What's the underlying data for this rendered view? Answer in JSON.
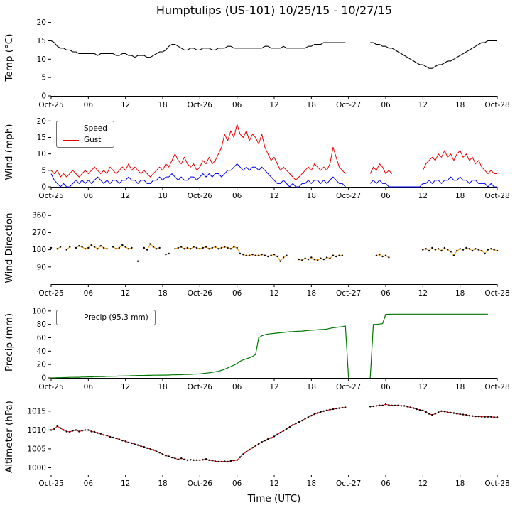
{
  "title": "Humptulips (US-101) 10/25/15 - 10/27/15",
  "xlabel": "Time (UTC)",
  "x_axis": {
    "xlim": [
      0,
      72
    ],
    "tick_hours": [
      0,
      6,
      12,
      18,
      24,
      30,
      36,
      42,
      48,
      54,
      60,
      66,
      72
    ],
    "tick_labels": [
      "Oct-25",
      "06",
      "12",
      "18",
      "Oct-26",
      "06",
      "12",
      "18",
      "Oct-27",
      "06",
      "12",
      "18",
      "Oct-28"
    ]
  },
  "chart_data": [
    {
      "id": "temp",
      "type": "line",
      "ylabel": "Temp (°C)",
      "ylim": [
        0,
        20.5
      ],
      "yticks": [
        0,
        5,
        10,
        15,
        20
      ],
      "series": [
        {
          "name": "Temp",
          "color": "#000000",
          "width": 1.1,
          "marker": false,
          "start": 0,
          "step": 0.5,
          "values": [
            15,
            14.5,
            13.5,
            13,
            13,
            12.5,
            12.5,
            12,
            12,
            11.5,
            11.5,
            11.5,
            11.5,
            11.5,
            11.5,
            11,
            11.5,
            11.5,
            11.5,
            11.5,
            11.5,
            11,
            11,
            11.5,
            11.5,
            11,
            11,
            10.5,
            11,
            11,
            11,
            10.5,
            10.5,
            11,
            11.5,
            12,
            12,
            12.5,
            13.5,
            14,
            14,
            13.5,
            13,
            12.5,
            12.5,
            13,
            13,
            12.5,
            12.5,
            13,
            13,
            13,
            12.5,
            12.5,
            13,
            13,
            13,
            13.5,
            13.5,
            13,
            13,
            13,
            13,
            13,
            13,
            13,
            13,
            13,
            13,
            13.5,
            13.5,
            13,
            13,
            13,
            13,
            13.5,
            13,
            13,
            13,
            13,
            13,
            13,
            13,
            13.5,
            13.5,
            14,
            14,
            14,
            14.5,
            14.5,
            14.5,
            14.5,
            14.5,
            14.5,
            14.5,
            14.5,
            null,
            null,
            null,
            null,
            null,
            null,
            null,
            14.5,
            14.5,
            14,
            14,
            13.5,
            13.5,
            13,
            13,
            12.5,
            12,
            11.5,
            11,
            10.5,
            10,
            9.5,
            9,
            8.5,
            8.5,
            8,
            7.5,
            7.5,
            8,
            8.5,
            8.5,
            9,
            9.5,
            9.5,
            10,
            10.5,
            11,
            11.5,
            12,
            12.5,
            13,
            13.5,
            14,
            14.5,
            14.5,
            15,
            15,
            15,
            15
          ]
        }
      ]
    },
    {
      "id": "wind",
      "type": "line",
      "ylabel": "Wind (mph)",
      "ylim": [
        0,
        20.5
      ],
      "yticks": [
        0,
        5,
        10,
        15,
        20
      ],
      "legend_position": "upper-left",
      "series": [
        {
          "name": "Speed",
          "color": "#0000ee",
          "width": 1,
          "marker": false,
          "start": 0,
          "step": 0.5,
          "values": [
            4,
            2,
            1,
            0,
            1,
            0,
            0,
            1,
            2,
            1,
            2,
            1,
            2,
            1,
            2,
            3,
            2,
            1,
            2,
            1,
            2,
            2,
            1,
            2,
            2,
            3,
            2,
            2,
            1,
            2,
            2,
            1,
            1,
            2,
            2,
            3,
            2,
            3,
            3,
            4,
            3,
            2,
            3,
            2,
            2,
            3,
            3,
            2,
            3,
            4,
            3,
            4,
            3,
            4,
            4,
            3,
            4,
            5,
            5,
            6,
            7,
            6,
            5,
            6,
            5,
            6,
            6,
            5,
            6,
            5,
            4,
            3,
            2,
            1,
            1,
            2,
            1,
            0,
            1,
            0,
            0,
            1,
            1,
            2,
            1,
            2,
            2,
            1,
            2,
            1,
            2,
            3,
            2,
            1,
            1,
            0,
            null,
            null,
            null,
            null,
            null,
            null,
            null,
            1,
            2,
            1,
            2,
            1,
            1,
            0,
            0,
            0,
            0,
            0,
            0,
            0,
            0,
            0,
            0,
            0,
            1,
            1,
            2,
            1,
            2,
            2,
            1,
            2,
            2,
            3,
            2,
            2,
            3,
            2,
            2,
            1,
            2,
            2,
            1,
            1,
            1,
            0,
            1,
            0,
            0
          ]
        },
        {
          "name": "Gust",
          "color": "#ee0000",
          "width": 1,
          "marker": false,
          "start": 0,
          "step": 0.5,
          "values": [
            5,
            4,
            5,
            3,
            4,
            3,
            4,
            5,
            4,
            3,
            4,
            5,
            4,
            5,
            6,
            5,
            4,
            5,
            4,
            6,
            5,
            4,
            5,
            6,
            5,
            7,
            5,
            6,
            5,
            4,
            5,
            4,
            3,
            4,
            5,
            6,
            5,
            7,
            6,
            8,
            10,
            8,
            7,
            9,
            7,
            6,
            7,
            5,
            6,
            8,
            7,
            9,
            7,
            8,
            10,
            12,
            16,
            14,
            17,
            15,
            19,
            16,
            15,
            17,
            14,
            16,
            15,
            13,
            16,
            12,
            10,
            8,
            9,
            7,
            5,
            6,
            5,
            4,
            3,
            2,
            3,
            4,
            5,
            6,
            5,
            7,
            6,
            5,
            6,
            5,
            7,
            12,
            9,
            6,
            5,
            4,
            null,
            null,
            null,
            null,
            null,
            null,
            null,
            4,
            6,
            5,
            7,
            6,
            4,
            5,
            4,
            null,
            null,
            null,
            null,
            null,
            null,
            null,
            null,
            null,
            5,
            7,
            8,
            9,
            8,
            10,
            9,
            11,
            9,
            10,
            8,
            10,
            11,
            9,
            10,
            8,
            9,
            7,
            8,
            6,
            5,
            4,
            5,
            4,
            4
          ]
        }
      ]
    },
    {
      "id": "wind-direction",
      "type": "line",
      "ylabel": "Wind Direction",
      "ylim": [
        0,
        372
      ],
      "yticks": [
        90,
        180,
        270,
        360
      ],
      "series": [
        {
          "name": "Wind Direction",
          "color": "#ff9900",
          "width": 1,
          "marker": true,
          "marker_color": "#000000",
          "start": 0,
          "step": 0.5,
          "values": [
            190,
            null,
            185,
            195,
            null,
            180,
            195,
            null,
            190,
            200,
            195,
            185,
            190,
            205,
            195,
            185,
            200,
            190,
            185,
            null,
            195,
            185,
            190,
            205,
            195,
            185,
            190,
            null,
            120,
            null,
            190,
            180,
            210,
            195,
            185,
            190,
            null,
            155,
            160,
            null,
            185,
            190,
            195,
            185,
            190,
            185,
            195,
            190,
            185,
            190,
            195,
            185,
            190,
            195,
            185,
            190,
            195,
            190,
            185,
            195,
            190,
            160,
            155,
            150,
            150,
            155,
            150,
            150,
            155,
            150,
            145,
            150,
            155,
            145,
            120,
            140,
            150,
            null,
            null,
            null,
            130,
            125,
            135,
            130,
            140,
            130,
            125,
            135,
            130,
            140,
            135,
            150,
            145,
            150,
            150,
            null,
            null,
            null,
            null,
            null,
            null,
            null,
            null,
            null,
            null,
            150,
            155,
            145,
            150,
            140,
            null,
            null,
            null,
            null,
            null,
            null,
            null,
            null,
            null,
            null,
            180,
            185,
            175,
            190,
            180,
            185,
            175,
            190,
            180,
            170,
            150,
            175,
            185,
            180,
            190,
            185,
            175,
            185,
            180,
            175,
            160,
            180,
            185,
            180,
            175
          ]
        }
      ]
    },
    {
      "id": "precip",
      "type": "line",
      "ylabel": "Precip (mm)",
      "ylim": [
        0,
        103
      ],
      "yticks": [
        0,
        20,
        40,
        60,
        80,
        100
      ],
      "legend_position": "upper-left",
      "series": [
        {
          "name": "Precip (95.3 mm)",
          "color": "#007700",
          "width": 1.2,
          "marker": false,
          "start": 0,
          "step": 0.5,
          "values": [
            0,
            0,
            0.3,
            0.3,
            0.5,
            0.5,
            0.8,
            0.8,
            1,
            1,
            1.3,
            1.3,
            1.5,
            1.5,
            1.8,
            1.8,
            2,
            2,
            2.3,
            2.3,
            2.5,
            2.5,
            2.8,
            2.8,
            3,
            3,
            3.3,
            3.3,
            3.6,
            3.6,
            3.6,
            3.8,
            3.8,
            4,
            4,
            4.1,
            4.1,
            4.3,
            4.3,
            4.6,
            4.6,
            4.8,
            4.8,
            5.1,
            5.1,
            5.3,
            5.6,
            5.8,
            6.1,
            6.6,
            7.1,
            7.6,
            8.4,
            9.1,
            9.9,
            11.4,
            13,
            15,
            17,
            19,
            21.5,
            25,
            27,
            28.5,
            30,
            32,
            35,
            60,
            63,
            64.5,
            65.5,
            66,
            66.5,
            67,
            67.5,
            68,
            68.5,
            69,
            69.2,
            69.5,
            69.8,
            70,
            70.5,
            71,
            71.2,
            71.5,
            72,
            72.2,
            72.5,
            73,
            74,
            75,
            75.5,
            76,
            76.5,
            77.5,
            0,
            null,
            null,
            null,
            null,
            null,
            null,
            0,
            80,
            80,
            80.5,
            81,
            95,
            95,
            95.3,
            95.3,
            95.3,
            95.3,
            95.3,
            95.3,
            95.3,
            95.3,
            95.3,
            95.3,
            95.3,
            95.3,
            95.3,
            95.3,
            95.3,
            95.3,
            95.3,
            95.3,
            95.3,
            95.3,
            95.3,
            95.3,
            95.3,
            95.3,
            95.3,
            95.3,
            95.3,
            95.3,
            95.3,
            95.3,
            95.3,
            95.3
          ]
        }
      ]
    },
    {
      "id": "altimeter",
      "type": "line",
      "ylabel": "Altimeter (hPa)",
      "ylim": [
        998.2,
        1017.6
      ],
      "yticks": [
        1000,
        1005,
        1010,
        1015
      ],
      "series": [
        {
          "name": "Altimeter",
          "color": "#cc0000",
          "width": 1,
          "marker": true,
          "marker_color": "#000000",
          "start": 0,
          "step": 0.5,
          "values": [
            1010,
            1010.3,
            1011,
            1010.5,
            1010,
            1009.6,
            1009.5,
            1009.8,
            1010,
            1009.6,
            1009.8,
            1010,
            1010,
            1009.6,
            1009.5,
            1009.2,
            1009,
            1008.7,
            1008.5,
            1008.2,
            1008,
            1007.8,
            1007.5,
            1007.2,
            1007,
            1006.7,
            1006.5,
            1006.2,
            1006,
            1005.7,
            1005.5,
            1005.2,
            1005,
            1004.7,
            1004.3,
            1004,
            1003.6,
            1003.2,
            1003,
            1002.7,
            1002.5,
            1002.2,
            1002.5,
            1002.2,
            1002,
            1002.1,
            1002,
            1002,
            1002,
            1002.1,
            1002.3,
            1002,
            1001.9,
            1001.7,
            1001.6,
            1001.6,
            1001.7,
            1001.6,
            1001.8,
            1001.9,
            1002,
            1002.8,
            1003.6,
            1004.2,
            1004.8,
            1005.3,
            1005.8,
            1006.3,
            1006.8,
            1007.2,
            1007.6,
            1007.9,
            1008.3,
            1008.8,
            1009.3,
            1009.8,
            1010.3,
            1010.8,
            1011.3,
            1011.7,
            1012.1,
            1012.5,
            1013,
            1013.4,
            1013.8,
            1014.2,
            1014.5,
            1014.8,
            1015,
            1015.2,
            1015.4,
            1015.5,
            1015.7,
            1015.8,
            1015.9,
            1016,
            null,
            null,
            null,
            null,
            null,
            null,
            null,
            1016.2,
            1016.3,
            1016.4,
            1016.5,
            1016.5,
            1016.8,
            1016.6,
            1016.5,
            1016.5,
            1016.5,
            1016.4,
            1016.4,
            1016.2,
            1016,
            1015.8,
            1015.5,
            1015.3,
            1015.2,
            1014.8,
            1014.3,
            1014,
            1014.3,
            1014.7,
            1015,
            1014.9,
            1014.7,
            1014.6,
            1014.5,
            1014.3,
            1014.2,
            1014.1,
            1014,
            1013.8,
            1013.7,
            1013.6,
            1013.6,
            1013.5,
            1013.5,
            1013.5,
            1013.5,
            1013.4,
            1013.4
          ]
        }
      ]
    }
  ]
}
